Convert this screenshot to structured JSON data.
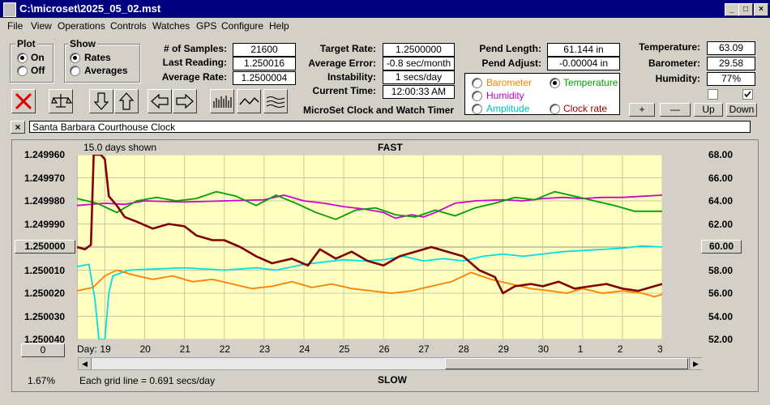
{
  "window": {
    "title": "C:\\microset\\2025_05_02.mst"
  },
  "menu": [
    "File",
    "View",
    "Operations",
    "Controls",
    "Watches",
    "GPS",
    "Configure",
    "Help"
  ],
  "plot_group": {
    "label": "Plot",
    "options": [
      "On",
      "Off"
    ],
    "selected": "On"
  },
  "show_group": {
    "label": "Show",
    "options": [
      "Rates",
      "Averages"
    ],
    "selected": "Rates"
  },
  "stats": {
    "samples_label": "# of Samples:",
    "samples": "21600",
    "last_reading_label": "Last Reading:",
    "last_reading": "1.250016",
    "average_rate_label": "Average Rate:",
    "average_rate": "1.2500004",
    "target_rate_label": "Target Rate:",
    "target_rate": "1.2500000",
    "average_error_label": "Average Error:",
    "average_error": "-0.8 sec/month",
    "instability_label": "Instability:",
    "instability": "1 secs/day",
    "current_time_label": "Current Time:",
    "current_time": "12:00:33 AM",
    "pend_length_label": "Pend Length:",
    "pend_length": "61.144 in",
    "pend_adjust_label": "Pend Adjust:",
    "pend_adjust": "-0.00004 in",
    "temperature_label": "Temperature:",
    "temperature": "63.09",
    "barometer_label": "Barometer:",
    "barometer": "29.58",
    "humidity_label": "Humidity:",
    "humidity": "77%"
  },
  "app_caption": "MicroSet Clock and Watch Timer",
  "sensor_select": {
    "options": [
      "Barometer",
      "Temperature",
      "Humidity",
      "Amplitude",
      "Clock rate"
    ],
    "selected": "Temperature",
    "colors": {
      "Barometer": "#ff8000",
      "Temperature": "#00a000",
      "Humidity": "#c000c0",
      "Amplitude": "#00c0c0",
      "Clock rate": "#a00000"
    }
  },
  "adjust_buttons": [
    "+",
    "—",
    "Up",
    "Down"
  ],
  "clock_name": "Santa Barbara Courthouse Clock",
  "chart": {
    "header_left": "15.0 days shown",
    "top_label": "FAST",
    "bottom_label": "SLOW",
    "center_left_button": "1.250000",
    "center_right_button": "60.00",
    "bottom_left_button": "0",
    "grid_note": "Each grid line = 0.691 secs/day",
    "percent": "1.67%",
    "day_label": "Day:"
  },
  "chart_data": {
    "type": "line",
    "x_ticks": [
      "19",
      "20",
      "21",
      "22",
      "23",
      "24",
      "25",
      "26",
      "27",
      "28",
      "29",
      "30",
      "1",
      "2",
      "3"
    ],
    "y_left_ticks": [
      "1.249960",
      "1.249970",
      "1.249980",
      "1.249990",
      "1.250000",
      "1.250010",
      "1.250020",
      "1.250030",
      "1.250040"
    ],
    "y_right_ticks": [
      "68.00",
      "66.00",
      "64.00",
      "62.00",
      "60.00",
      "58.00",
      "56.00",
      "54.00",
      "52.00"
    ],
    "ylim_left": [
      1.24996,
      1.25004
    ],
    "ylim_right": [
      52,
      68
    ],
    "x_range": [
      18.3,
      33.0
    ],
    "grid": true,
    "colors": {
      "rate": "#800000",
      "temperature": "#00a000",
      "humidity": "#d000d0",
      "amplitude": "#00e0e0",
      "barometer": "#ff8000",
      "background": "#ffffc0"
    },
    "series": [
      {
        "name": "Clock rate",
        "axis": "left",
        "values": [
          [
            18.3,
            1.25
          ],
          [
            18.5,
            1.250001
          ],
          [
            18.65,
            1.249999
          ],
          [
            18.72,
            1.249958
          ],
          [
            18.9,
            1.249958
          ],
          [
            19.0,
            1.249962
          ],
          [
            19.1,
            1.249978
          ],
          [
            19.3,
            1.249982
          ],
          [
            19.5,
            1.249987
          ],
          [
            19.8,
            1.249989
          ],
          [
            20.2,
            1.249992
          ],
          [
            20.6,
            1.24999
          ],
          [
            21.0,
            1.249991
          ],
          [
            21.3,
            1.249995
          ],
          [
            21.7,
            1.249997
          ],
          [
            22.0,
            1.249997
          ],
          [
            22.4,
            1.25
          ],
          [
            22.8,
            1.250004
          ],
          [
            23.2,
            1.250007
          ],
          [
            23.7,
            1.250005
          ],
          [
            24.1,
            1.250008
          ],
          [
            24.4,
            1.250001
          ],
          [
            24.8,
            1.250005
          ],
          [
            25.2,
            1.250002
          ],
          [
            25.6,
            1.250006
          ],
          [
            26.0,
            1.250008
          ],
          [
            26.4,
            1.250004
          ],
          [
            26.8,
            1.250002
          ],
          [
            27.2,
            1.25
          ],
          [
            27.6,
            1.250002
          ],
          [
            28.0,
            1.250004
          ],
          [
            28.4,
            1.25001
          ],
          [
            28.8,
            1.250013
          ],
          [
            29.0,
            1.25002
          ],
          [
            29.3,
            1.250017
          ],
          [
            29.7,
            1.250016
          ],
          [
            30.0,
            1.250017
          ],
          [
            30.4,
            1.250015
          ],
          [
            30.8,
            1.250018
          ],
          [
            31.2,
            1.250017
          ],
          [
            31.6,
            1.250016
          ],
          [
            32.0,
            1.250018
          ],
          [
            32.4,
            1.250019
          ],
          [
            32.8,
            1.250017
          ],
          [
            33.0,
            1.250016
          ]
        ]
      },
      {
        "name": "Temperature",
        "axis": "right",
        "values": [
          [
            18.3,
            64.2
          ],
          [
            18.8,
            63.8
          ],
          [
            19.3,
            63.0
          ],
          [
            19.8,
            64.0
          ],
          [
            20.3,
            64.3
          ],
          [
            20.8,
            64.0
          ],
          [
            21.3,
            64.2
          ],
          [
            21.8,
            64.8
          ],
          [
            22.3,
            64.4
          ],
          [
            22.8,
            63.6
          ],
          [
            23.3,
            64.5
          ],
          [
            23.8,
            63.8
          ],
          [
            24.3,
            63.0
          ],
          [
            24.8,
            62.4
          ],
          [
            25.3,
            63.2
          ],
          [
            25.8,
            63.4
          ],
          [
            26.3,
            62.8
          ],
          [
            26.8,
            62.6
          ],
          [
            27.3,
            63.2
          ],
          [
            27.8,
            62.7
          ],
          [
            28.3,
            63.4
          ],
          [
            28.8,
            63.8
          ],
          [
            29.3,
            64.3
          ],
          [
            29.8,
            64.1
          ],
          [
            30.3,
            64.8
          ],
          [
            30.8,
            64.4
          ],
          [
            31.3,
            64.0
          ],
          [
            31.8,
            63.6
          ],
          [
            32.3,
            63.1
          ],
          [
            33.0,
            63.1
          ]
        ]
      },
      {
        "name": "Humidity",
        "axis": "right",
        "values": [
          [
            18.3,
            63.6
          ],
          [
            19.0,
            63.8
          ],
          [
            19.5,
            63.7
          ],
          [
            20.0,
            64.0
          ],
          [
            21.0,
            63.9
          ],
          [
            22.0,
            64.0
          ],
          [
            23.0,
            64.1
          ],
          [
            23.5,
            64.5
          ],
          [
            24.0,
            64.0
          ],
          [
            24.5,
            63.8
          ],
          [
            25.0,
            63.5
          ],
          [
            25.5,
            63.3
          ],
          [
            26.0,
            63.0
          ],
          [
            26.3,
            62.5
          ],
          [
            26.7,
            62.8
          ],
          [
            27.0,
            62.6
          ],
          [
            27.3,
            63.0
          ],
          [
            27.8,
            63.8
          ],
          [
            28.3,
            64.0
          ],
          [
            29.0,
            64.1
          ],
          [
            29.5,
            64.0
          ],
          [
            30.0,
            64.2
          ],
          [
            30.5,
            64.3
          ],
          [
            31.0,
            64.2
          ],
          [
            31.5,
            64.3
          ],
          [
            32.0,
            64.3
          ],
          [
            32.5,
            64.4
          ],
          [
            33.0,
            64.5
          ]
        ]
      },
      {
        "name": "Amplitude",
        "axis": "right",
        "values": [
          [
            18.3,
            58.3
          ],
          [
            18.6,
            58.5
          ],
          [
            18.75,
            55.5
          ],
          [
            18.85,
            52.0
          ],
          [
            19.0,
            52.0
          ],
          [
            19.1,
            56.0
          ],
          [
            19.2,
            57.5
          ],
          [
            19.6,
            58.0
          ],
          [
            20.2,
            58.1
          ],
          [
            21.0,
            58.2
          ],
          [
            22.0,
            58.0
          ],
          [
            22.8,
            58.2
          ],
          [
            23.3,
            58.0
          ],
          [
            24.0,
            58.5
          ],
          [
            24.5,
            58.7
          ],
          [
            25.0,
            58.9
          ],
          [
            25.5,
            58.8
          ],
          [
            26.0,
            58.9
          ],
          [
            26.5,
            59.2
          ],
          [
            27.0,
            58.8
          ],
          [
            27.5,
            59.0
          ],
          [
            28.0,
            58.8
          ],
          [
            28.5,
            59.2
          ],
          [
            29.0,
            59.4
          ],
          [
            29.5,
            59.2
          ],
          [
            30.0,
            59.4
          ],
          [
            30.5,
            59.6
          ],
          [
            31.0,
            59.7
          ],
          [
            31.5,
            59.8
          ],
          [
            32.0,
            59.9
          ],
          [
            32.5,
            60.1
          ],
          [
            33.0,
            60.0
          ]
        ]
      },
      {
        "name": "Barometer",
        "axis": "right",
        "values": [
          [
            18.3,
            56.2
          ],
          [
            18.7,
            56.5
          ],
          [
            19.0,
            57.5
          ],
          [
            19.3,
            58.0
          ],
          [
            19.7,
            57.6
          ],
          [
            20.2,
            57.2
          ],
          [
            20.7,
            57.5
          ],
          [
            21.2,
            57.0
          ],
          [
            21.7,
            57.2
          ],
          [
            22.2,
            56.8
          ],
          [
            22.7,
            56.4
          ],
          [
            23.2,
            56.6
          ],
          [
            23.7,
            57.0
          ],
          [
            24.2,
            56.5
          ],
          [
            24.7,
            56.8
          ],
          [
            25.2,
            56.4
          ],
          [
            25.7,
            56.2
          ],
          [
            26.2,
            56.0
          ],
          [
            26.7,
            56.2
          ],
          [
            27.2,
            56.6
          ],
          [
            27.7,
            57.0
          ],
          [
            28.2,
            57.8
          ],
          [
            28.7,
            57.2
          ],
          [
            29.2,
            56.8
          ],
          [
            29.7,
            56.4
          ],
          [
            30.2,
            56.2
          ],
          [
            30.6,
            56.0
          ],
          [
            31.0,
            56.4
          ],
          [
            31.5,
            56.0
          ],
          [
            32.0,
            56.2
          ],
          [
            32.5,
            56.0
          ],
          [
            32.8,
            55.7
          ],
          [
            33.0,
            55.9
          ]
        ]
      }
    ]
  }
}
